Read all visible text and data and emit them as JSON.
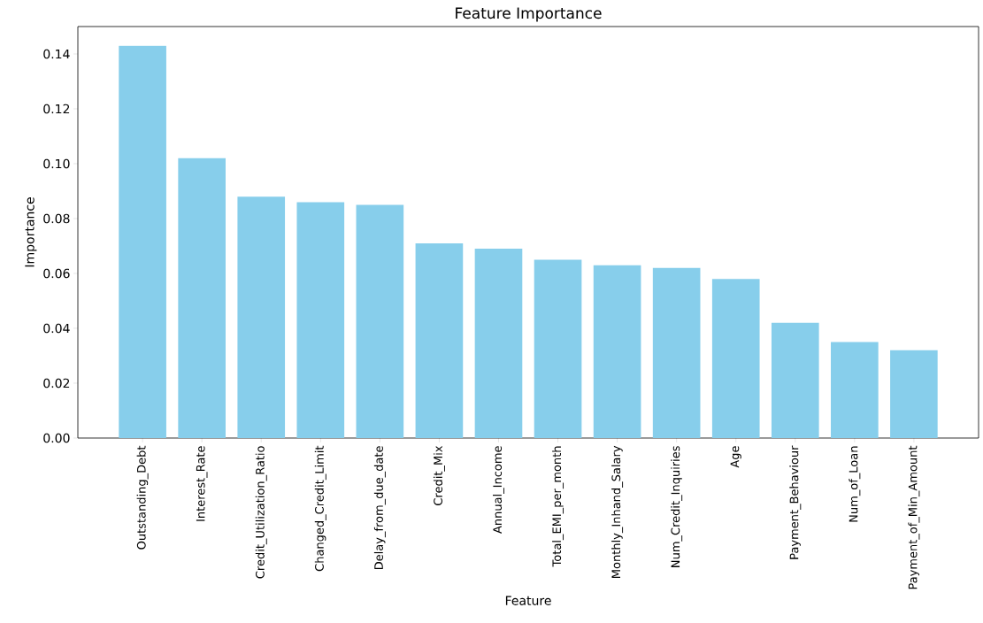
{
  "chart_data": {
    "type": "bar",
    "title": "Feature Importance",
    "xlabel": "Feature",
    "ylabel": "Importance",
    "categories": [
      "Outstanding_Debt",
      "Interest_Rate",
      "Credit_Utilization_Ratio",
      "Changed_Credit_Limit",
      "Delay_from_due_date",
      "Credit_Mix",
      "Annual_Income",
      "Total_EMI_per_month",
      "Monthly_Inhand_Salary",
      "Num_Credit_Inquiries",
      "Age",
      "Payment_Behaviour",
      "Num_of_Loan",
      "Payment_of_Min_Amount"
    ],
    "values": [
      0.143,
      0.102,
      0.088,
      0.086,
      0.085,
      0.071,
      0.069,
      0.065,
      0.063,
      0.062,
      0.058,
      0.042,
      0.035,
      0.032
    ],
    "color": "#87ceeb",
    "ylim": [
      0,
      0.15
    ],
    "yticks": [
      {
        "value": 0,
        "label": "0.00"
      },
      {
        "value": 0.02,
        "label": "0.02"
      },
      {
        "value": 0.04,
        "label": "0.04"
      },
      {
        "value": 0.06,
        "label": "0.06"
      },
      {
        "value": 0.08,
        "label": "0.08"
      },
      {
        "value": 0.1,
        "label": "0.10"
      },
      {
        "value": 0.12,
        "label": "0.12"
      },
      {
        "value": 0.14,
        "label": "0.14"
      }
    ]
  }
}
